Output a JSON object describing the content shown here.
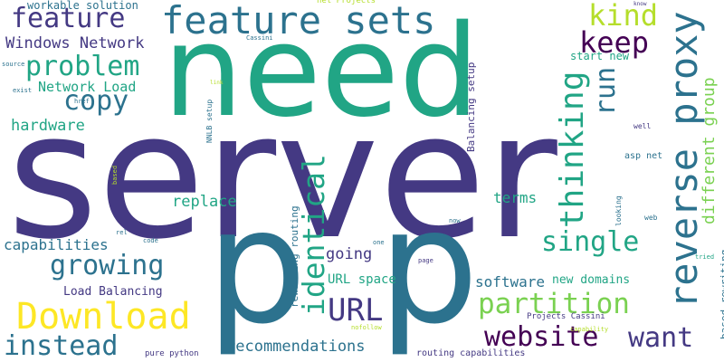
{
  "cloud": {
    "background": "#ffffff",
    "words": [
      {
        "text": "server",
        "color": "#443983"
      },
      {
        "text": "need",
        "color": "#21a585"
      },
      {
        "text": "p",
        "color": "#2c728e"
      },
      {
        "text": "p",
        "color": "#2c728e"
      },
      {
        "text": "feature sets",
        "color": "#2c728e"
      },
      {
        "text": "feature",
        "color": "#443983"
      },
      {
        "text": "problem",
        "color": "#21a585"
      },
      {
        "text": "copy",
        "color": "#2c728e"
      },
      {
        "text": "Windows Network",
        "color": "#443983"
      },
      {
        "text": "workable solution",
        "color": "#2c728e"
      },
      {
        "text": "Network Load",
        "color": "#21a585"
      },
      {
        "text": "hardware",
        "color": "#21a585"
      },
      {
        "text": "kind",
        "color": "#b5de2b"
      },
      {
        "text": "keep",
        "color": "#440154"
      },
      {
        "text": "run",
        "color": "#2c728e"
      },
      {
        "text": "thinking",
        "color": "#21a585"
      },
      {
        "text": "reverse proxy",
        "color": "#2c728e"
      },
      {
        "text": "different group",
        "color": "#7ad151"
      },
      {
        "text": "identical",
        "color": "#21a585"
      },
      {
        "text": "replace",
        "color": "#21a585"
      },
      {
        "text": "capabilities",
        "color": "#2c728e"
      },
      {
        "text": "growing",
        "color": "#2c728e"
      },
      {
        "text": "going",
        "color": "#443983"
      },
      {
        "text": "single",
        "color": "#21a585"
      },
      {
        "text": "terms",
        "color": "#21a585"
      },
      {
        "text": "partition",
        "color": "#7ad151"
      },
      {
        "text": "Download",
        "color": "#fde725"
      },
      {
        "text": "instead",
        "color": "#2c728e"
      },
      {
        "text": "Load Balancing",
        "color": "#443983"
      },
      {
        "text": "URL",
        "color": "#443983"
      },
      {
        "text": "URL space",
        "color": "#21a585"
      },
      {
        "text": "software",
        "color": "#2c728e"
      },
      {
        "text": "new domains",
        "color": "#21a585"
      },
      {
        "text": "website",
        "color": "#440154"
      },
      {
        "text": "want",
        "color": "#443983"
      },
      {
        "text": "recommendations",
        "color": "#2c728e"
      },
      {
        "text": "start new",
        "color": "#21a585"
      },
      {
        "text": "Balancing setup",
        "color": "#443983"
      },
      {
        "text": "rewriting routing",
        "color": "#2c728e"
      },
      {
        "text": "asp net",
        "color": "#2c728e"
      },
      {
        "text": "based rewriting",
        "color": "#2c728e"
      },
      {
        "text": "Projects Cassini",
        "color": "#443983"
      },
      {
        "text": "routing capabilities",
        "color": "#443983"
      },
      {
        "text": "pure python",
        "color": "#443983"
      },
      {
        "text": "net Projects",
        "color": "#b5de2b"
      },
      {
        "text": "Cassini",
        "color": "#2c728e"
      },
      {
        "text": "NNLB setup",
        "color": "#2c728e"
      },
      {
        "text": "source",
        "color": "#2c728e"
      },
      {
        "text": "exist",
        "color": "#2c728e"
      },
      {
        "text": "href",
        "color": "#2c728e"
      },
      {
        "text": "based",
        "color": "#b5de2b"
      },
      {
        "text": "rel",
        "color": "#2c728e"
      },
      {
        "text": "code",
        "color": "#2c728e"
      },
      {
        "text": "now",
        "color": "#2c728e"
      },
      {
        "text": "one",
        "color": "#2c728e"
      },
      {
        "text": "page",
        "color": "#443983"
      },
      {
        "text": "nofollow",
        "color": "#b5de2b"
      },
      {
        "text": "well",
        "color": "#443983"
      },
      {
        "text": "web",
        "color": "#2c728e"
      },
      {
        "text": "looking",
        "color": "#2c728e"
      },
      {
        "text": "know",
        "color": "#443983"
      },
      {
        "text": "tried",
        "color": "#21a585"
      },
      {
        "text": "capability",
        "color": "#b5de2b"
      },
      {
        "text": "link",
        "color": "#b5de2b"
      }
    ]
  }
}
